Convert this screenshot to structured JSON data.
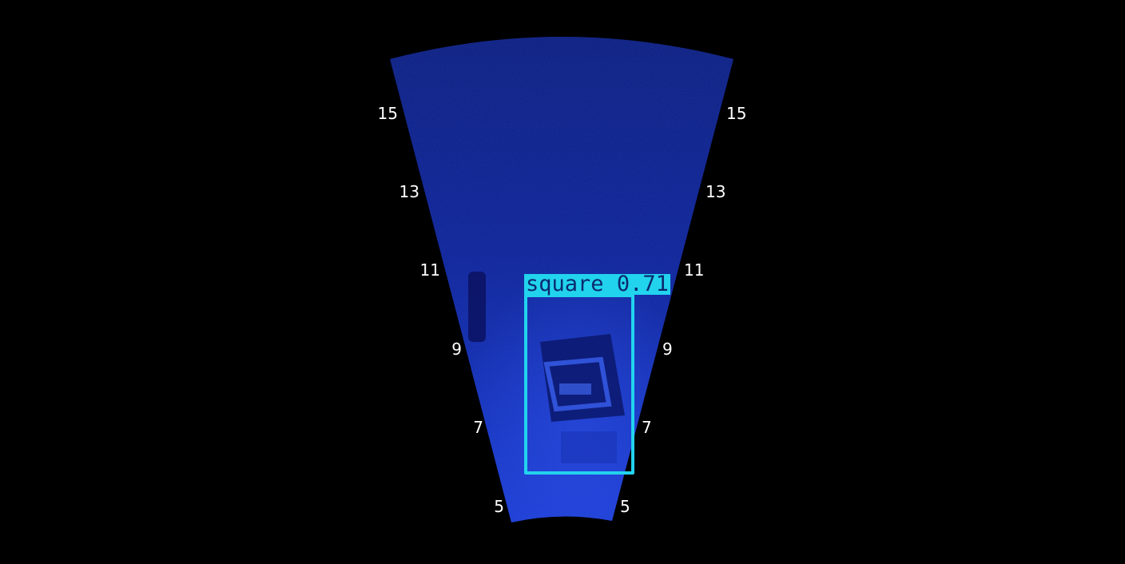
{
  "sonar": {
    "range_labels": [
      "5",
      "7",
      "9",
      "11",
      "13",
      "15"
    ]
  },
  "detection": {
    "label": "square",
    "confidence": "0.71",
    "color": "#22d3ee"
  },
  "colors": {
    "background": "#000000",
    "fan_dark": "#0a1a8e",
    "fan_bright": "#2040e8",
    "tag_text": "#0b2a6e"
  }
}
